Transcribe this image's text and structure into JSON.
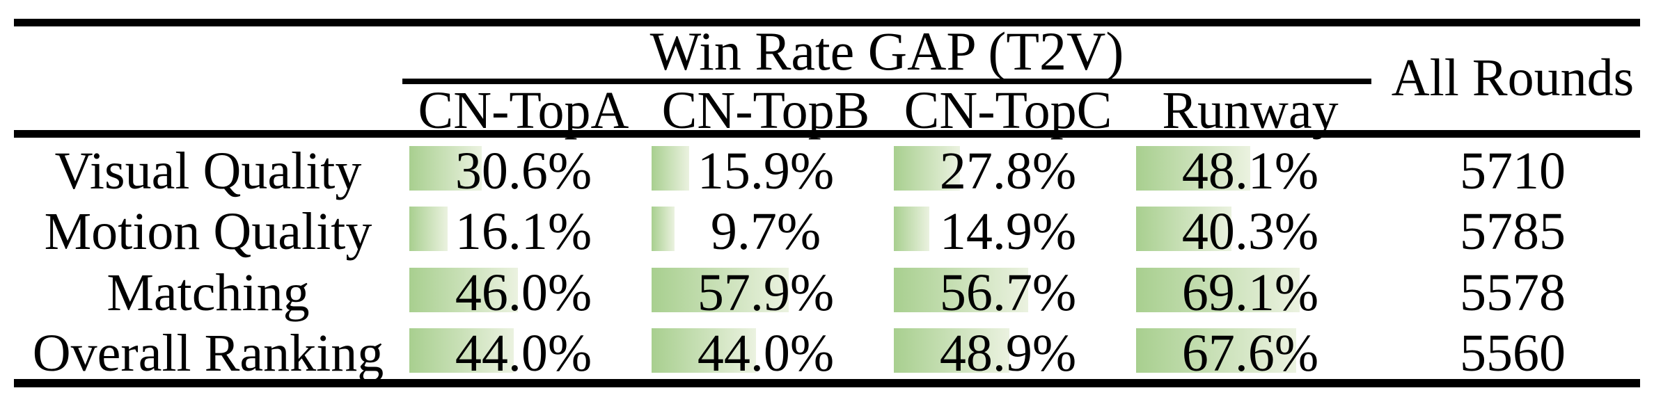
{
  "table": {
    "title": "Win Rate GAP (T2V)",
    "all_rounds_header": "All Rounds",
    "columns": [
      "CN-TopA",
      "CN-TopB",
      "CN-TopC",
      "Runway"
    ],
    "rows": [
      {
        "label": "Visual Quality",
        "cells": [
          "30.6%",
          "15.9%",
          "27.8%",
          "48.1%"
        ],
        "all_rounds": "5710"
      },
      {
        "label": "Motion Quality",
        "cells": [
          "16.1%",
          "9.7%",
          "14.9%",
          "40.3%"
        ],
        "all_rounds": "5785"
      },
      {
        "label": "Matching",
        "cells": [
          "46.0%",
          "57.9%",
          "56.7%",
          "69.1%"
        ],
        "all_rounds": "5578"
      },
      {
        "label": "Overall Ranking",
        "cells": [
          "44.0%",
          "44.0%",
          "48.9%",
          "67.6%"
        ],
        "all_rounds": "5560"
      }
    ],
    "colors": {
      "background": "#ffffff",
      "text": "#000000",
      "rule": "#000000",
      "bar_green": "#a8cf8f",
      "bar_fade": "#ebf2e0"
    }
  },
  "chart_data": {
    "type": "table",
    "title": "Win Rate GAP (T2V)",
    "categories": [
      "Visual Quality",
      "Motion Quality",
      "Matching",
      "Overall Ranking"
    ],
    "series": [
      {
        "name": "CN-TopA",
        "values": [
          30.6,
          16.1,
          46.0,
          44.0
        ]
      },
      {
        "name": "CN-TopB",
        "values": [
          15.9,
          9.7,
          57.9,
          44.0
        ]
      },
      {
        "name": "CN-TopC",
        "values": [
          27.8,
          14.9,
          56.7,
          48.9
        ]
      },
      {
        "name": "Runway",
        "values": [
          48.1,
          40.3,
          69.1,
          67.6
        ]
      }
    ],
    "extra_column": {
      "name": "All Rounds",
      "values": [
        5710,
        5785,
        5578,
        5560
      ]
    },
    "unit": "%",
    "layout_hints": "booktabs table; green left-to-right fading data bars behind percentages, bar length proportional to value"
  }
}
